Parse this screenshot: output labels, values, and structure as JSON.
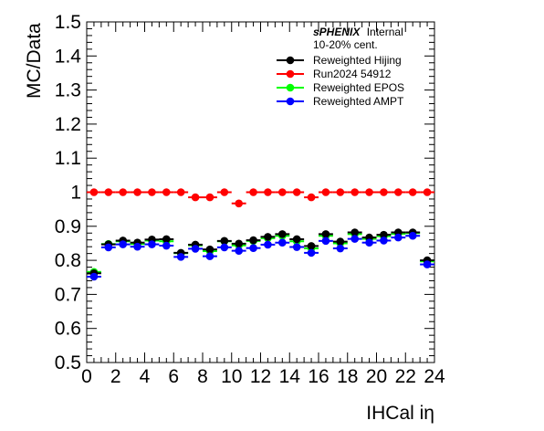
{
  "chart_data": {
    "type": "scatter",
    "xlabel": "IHCal iη",
    "ylabel": "MC/Data",
    "xlim": [
      0,
      24
    ],
    "ylim": [
      0.5,
      1.5
    ],
    "x_ticks": [
      "0",
      "2",
      "4",
      "6",
      "8",
      "10",
      "12",
      "14",
      "16",
      "18",
      "20",
      "22",
      "24"
    ],
    "y_ticks": [
      "0.5",
      "0.6",
      "0.7",
      "0.8",
      "0.9",
      "1",
      "1.1",
      "1.2",
      "1.3",
      "1.4",
      "1.5"
    ],
    "annotation": {
      "experiment": "sPHENIX",
      "status": "Internal",
      "centrality": "10-20% cent."
    },
    "legend_position": "top-right",
    "x": [
      0.5,
      1.5,
      2.5,
      3.5,
      4.5,
      5.5,
      6.5,
      7.5,
      8.5,
      9.5,
      10.5,
      11.5,
      12.5,
      13.5,
      14.5,
      15.5,
      16.5,
      17.5,
      18.5,
      19.5,
      20.5,
      21.5,
      22.5,
      23.5
    ],
    "series": [
      {
        "name": "Run2024 54912",
        "color": "#ff0000",
        "values": [
          1.0,
          1.0,
          1.0,
          1.0,
          1.0,
          1.0,
          1.0,
          0.985,
          0.985,
          1.0,
          0.967,
          1.0,
          1.0,
          1.0,
          1.0,
          0.985,
          1.0,
          1.0,
          1.0,
          1.0,
          1.0,
          1.0,
          1.0,
          1.0
        ]
      },
      {
        "name": "Reweighted EPOS",
        "color": "#00ff00",
        "values": [
          0.766,
          0.848,
          0.856,
          0.848,
          0.858,
          0.856,
          0.821,
          0.844,
          0.827,
          0.856,
          0.844,
          0.857,
          0.865,
          0.872,
          0.856,
          0.835,
          0.872,
          0.85,
          0.877,
          0.863,
          0.871,
          0.878,
          0.88,
          0.797
        ]
      },
      {
        "name": "Reweighted Hijing",
        "color": "#000000",
        "values": [
          0.762,
          0.847,
          0.858,
          0.852,
          0.861,
          0.862,
          0.822,
          0.846,
          0.832,
          0.857,
          0.849,
          0.859,
          0.869,
          0.877,
          0.862,
          0.842,
          0.877,
          0.855,
          0.882,
          0.867,
          0.875,
          0.882,
          0.882,
          0.8
        ]
      },
      {
        "name": "Reweighted AMPT",
        "color": "#0000ff",
        "values": [
          0.752,
          0.838,
          0.847,
          0.84,
          0.847,
          0.843,
          0.81,
          0.834,
          0.812,
          0.838,
          0.828,
          0.836,
          0.846,
          0.852,
          0.839,
          0.822,
          0.857,
          0.835,
          0.863,
          0.852,
          0.858,
          0.867,
          0.872,
          0.788
        ]
      }
    ],
    "legend_order": [
      "Reweighted Hijing",
      "Run2024 54912",
      "Reweighted EPOS",
      "Reweighted AMPT"
    ]
  }
}
